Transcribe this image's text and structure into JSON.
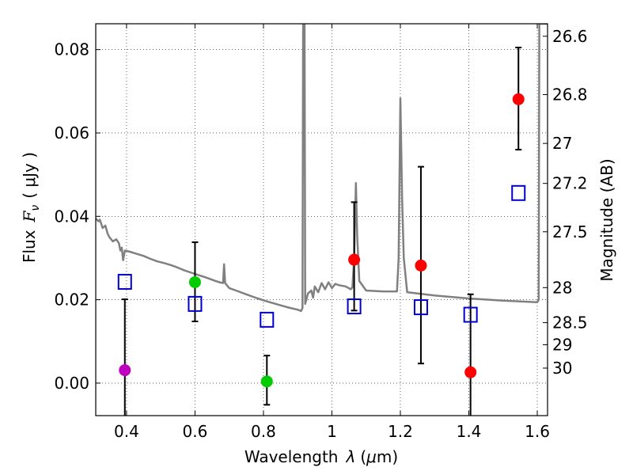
{
  "chart_data": {
    "type": "scatter",
    "xlabel": "Wavelength",
    "xlabel_symbol": "λ",
    "xlabel_unit_prefix": "(",
    "xlabel_unit_mu": "μ",
    "xlabel_unit_rest": "m)",
    "ylabel": "Flux",
    "ylabel_symbol": "F",
    "ylabel_subscript": "ν",
    "ylabel_unit": "( μJy )",
    "y2label": "Magnitude (AB)",
    "xlim": [
      0.31,
      1.63
    ],
    "ylim": [
      -0.0078,
      0.0862
    ],
    "grid": true,
    "x_ticks": [
      0.4,
      0.6,
      0.8,
      1.0,
      1.2,
      1.4,
      1.6
    ],
    "x_tick_labels": [
      "0.4",
      "0.6",
      "0.8",
      "1",
      "1.2",
      "1.4",
      "1.6"
    ],
    "y_ticks": [
      0.0,
      0.02,
      0.04,
      0.06,
      0.08
    ],
    "y_tick_labels": [
      "0.00",
      "0.02",
      "0.04",
      "0.06",
      "0.08"
    ],
    "y2_ticks": [
      {
        "label": "26.6",
        "flux": 0.0832
      },
      {
        "label": "26.8",
        "flux": 0.0692
      },
      {
        "label": "27",
        "flux": 0.0575
      },
      {
        "label": "27.2",
        "flux": 0.0479
      },
      {
        "label": "27.5",
        "flux": 0.0363
      },
      {
        "label": "28",
        "flux": 0.0229
      },
      {
        "label": "28.5",
        "flux": 0.0145
      },
      {
        "label": "29",
        "flux": 0.0092
      },
      {
        "label": "30",
        "flux": 0.0036
      }
    ],
    "model_spectrum": {
      "name": "model",
      "color": "#808080",
      "points": [
        [
          0.31,
          0.0395
        ],
        [
          0.318,
          0.0388
        ],
        [
          0.322,
          0.0392
        ],
        [
          0.33,
          0.0372
        ],
        [
          0.338,
          0.0378
        ],
        [
          0.345,
          0.0358
        ],
        [
          0.35,
          0.035
        ],
        [
          0.36,
          0.034
        ],
        [
          0.37,
          0.0345
        ],
        [
          0.378,
          0.0335
        ],
        [
          0.382,
          0.0318
        ],
        [
          0.386,
          0.0325
        ],
        [
          0.39,
          0.0295
        ],
        [
          0.395,
          0.0318
        ],
        [
          0.41,
          0.0315
        ],
        [
          0.43,
          0.031
        ],
        [
          0.45,
          0.0305
        ],
        [
          0.47,
          0.0298
        ],
        [
          0.49,
          0.0292
        ],
        [
          0.51,
          0.0288
        ],
        [
          0.53,
          0.0283
        ],
        [
          0.55,
          0.0277
        ],
        [
          0.57,
          0.027
        ],
        [
          0.6,
          0.0262
        ],
        [
          0.63,
          0.0254
        ],
        [
          0.66,
          0.0245
        ],
        [
          0.675,
          0.0241
        ],
        [
          0.682,
          0.024
        ],
        [
          0.685,
          0.0285
        ],
        [
          0.688,
          0.024
        ],
        [
          0.7,
          0.0228
        ],
        [
          0.72,
          0.0222
        ],
        [
          0.75,
          0.0213
        ],
        [
          0.78,
          0.0204
        ],
        [
          0.81,
          0.0196
        ],
        [
          0.84,
          0.0189
        ],
        [
          0.87,
          0.0182
        ],
        [
          0.9,
          0.0176
        ],
        [
          0.91,
          0.0173
        ],
        [
          0.914,
          0.018
        ],
        [
          0.916,
          0.0862
        ],
        [
          0.92,
          0.0862
        ],
        [
          0.922,
          0.019
        ],
        [
          0.93,
          0.0215
        ],
        [
          0.94,
          0.0222
        ],
        [
          0.945,
          0.0205
        ],
        [
          0.95,
          0.0232
        ],
        [
          0.96,
          0.0218
        ],
        [
          0.97,
          0.024
        ],
        [
          0.98,
          0.0225
        ],
        [
          0.99,
          0.0242
        ],
        [
          1.0,
          0.0228
        ],
        [
          1.01,
          0.0238
        ],
        [
          1.02,
          0.0235
        ],
        [
          1.04,
          0.0232
        ],
        [
          1.055,
          0.0225
        ],
        [
          1.06,
          0.023
        ],
        [
          1.065,
          0.03
        ],
        [
          1.07,
          0.048
        ],
        [
          1.074,
          0.035
        ],
        [
          1.08,
          0.0245
        ],
        [
          1.1,
          0.0222
        ],
        [
          1.15,
          0.022
        ],
        [
          1.19,
          0.022
        ],
        [
          1.195,
          0.03
        ],
        [
          1.2,
          0.0683
        ],
        [
          1.205,
          0.044
        ],
        [
          1.21,
          0.03
        ],
        [
          1.22,
          0.0218
        ],
        [
          1.3,
          0.021
        ],
        [
          1.4,
          0.0203
        ],
        [
          1.5,
          0.0198
        ],
        [
          1.6,
          0.0194
        ],
        [
          1.604,
          0.02
        ],
        [
          1.606,
          0.0862
        ],
        [
          1.63,
          0.0862
        ]
      ]
    },
    "photometry": [
      {
        "x": 0.395,
        "y": 0.0031,
        "err_low": 0.0135,
        "err_high": 0.017,
        "color": "#bf00bf"
      },
      {
        "x": 0.6,
        "y": 0.0242,
        "err_low": 0.0094,
        "err_high": 0.0096,
        "color": "#00cc00"
      },
      {
        "x": 0.81,
        "y": 0.0004,
        "err_low": 0.0056,
        "err_high": 0.0062,
        "color": "#00cc00"
      },
      {
        "x": 1.065,
        "y": 0.0296,
        "err_low": 0.0122,
        "err_high": 0.0138,
        "color": "#ff0000"
      },
      {
        "x": 1.26,
        "y": 0.0282,
        "err_low": 0.0235,
        "err_high": 0.0237,
        "color": "#ff0000"
      },
      {
        "x": 1.405,
        "y": 0.0026,
        "err_low": 0.013,
        "err_high": 0.0187,
        "color": "#ff0000"
      },
      {
        "x": 1.545,
        "y": 0.0681,
        "err_low": 0.0121,
        "err_high": 0.0124,
        "color": "#ff0000"
      }
    ],
    "model_photometry": {
      "color": "#0000cc",
      "points": [
        [
          0.395,
          0.0243
        ],
        [
          0.6,
          0.019
        ],
        [
          0.81,
          0.0152
        ],
        [
          1.065,
          0.0184
        ],
        [
          1.26,
          0.0182
        ],
        [
          1.405,
          0.0164
        ],
        [
          1.545,
          0.0456
        ]
      ]
    }
  }
}
